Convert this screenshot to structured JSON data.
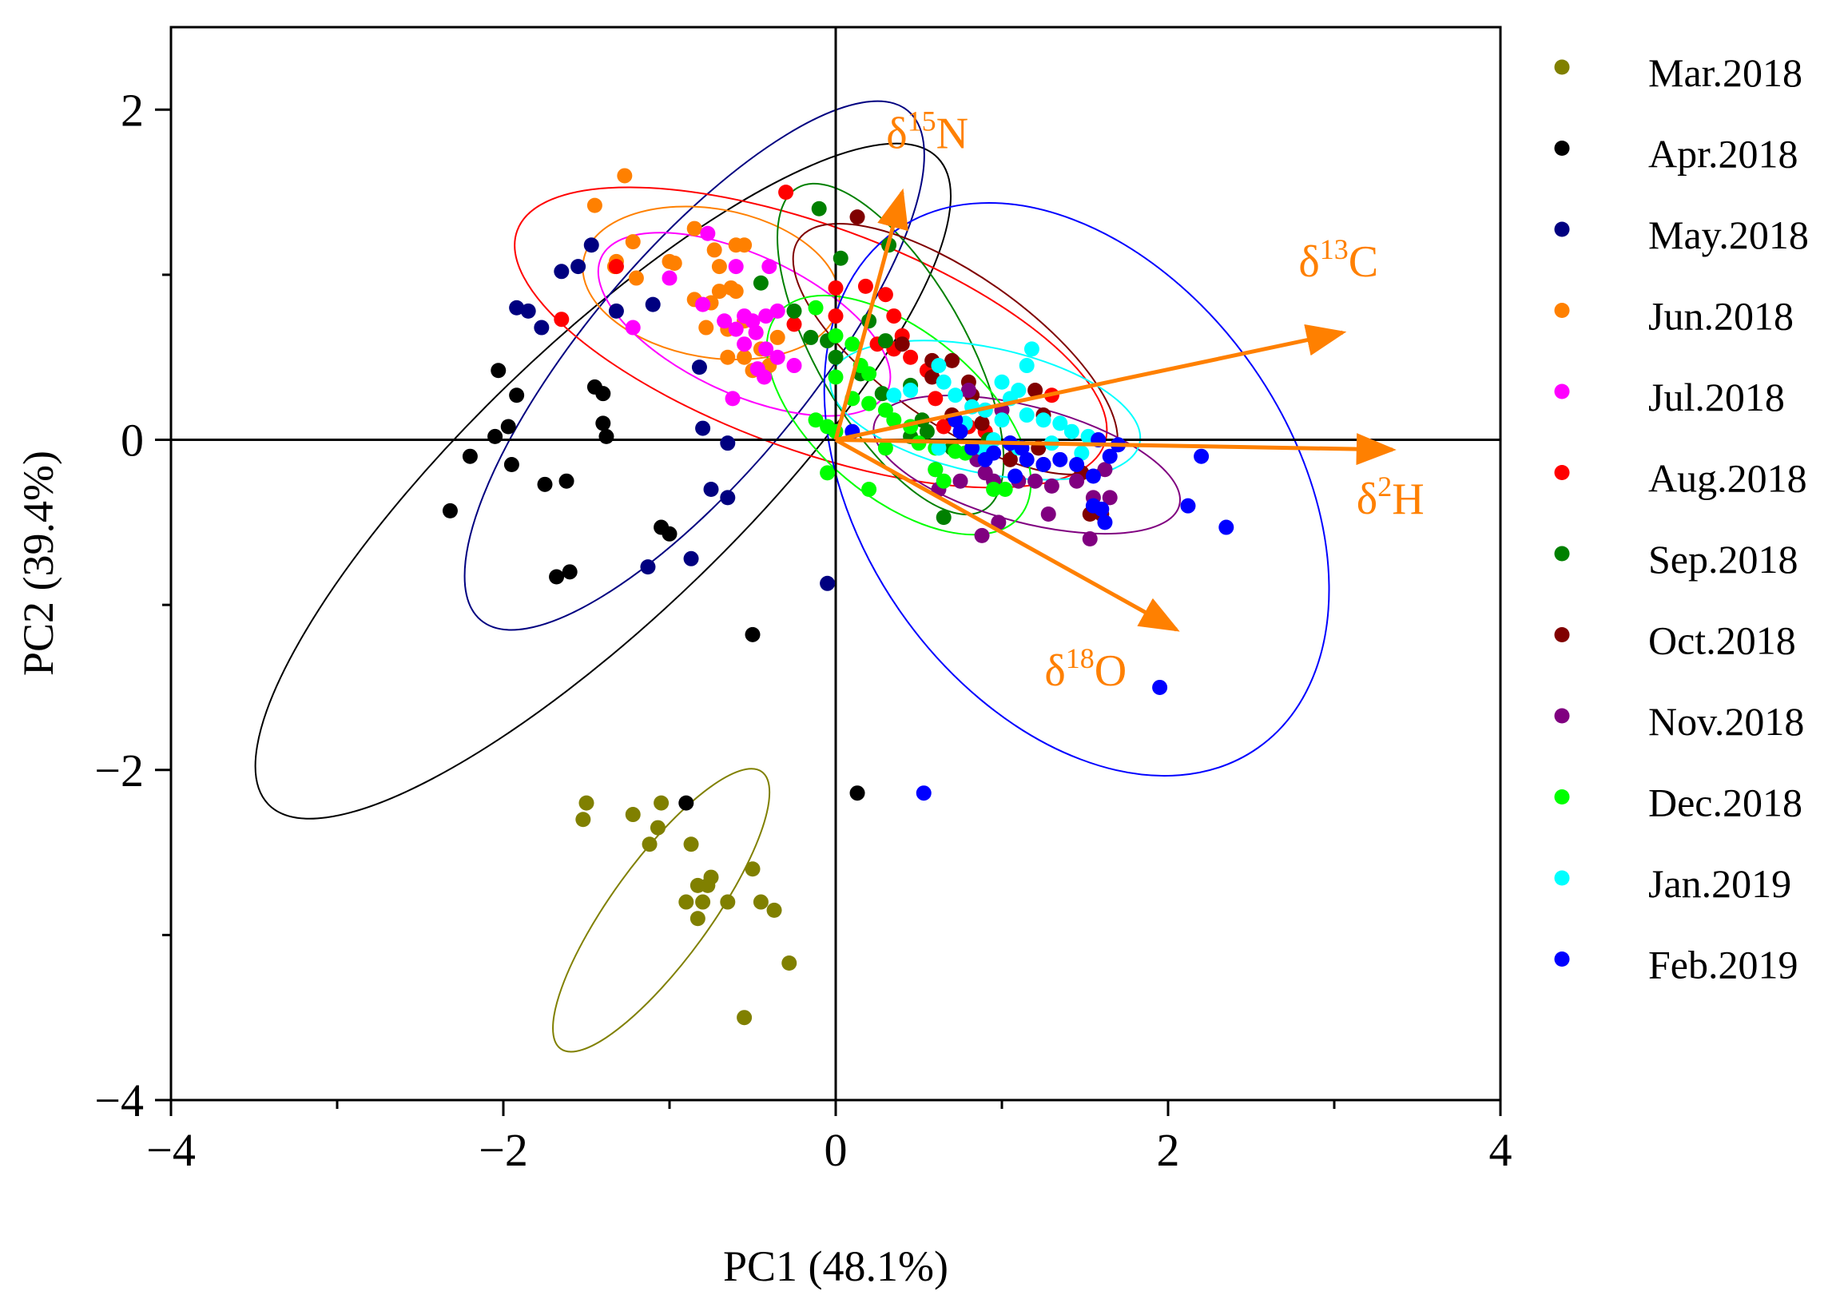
{
  "chart_data": {
    "type": "scatter",
    "title": "",
    "xlabel": "PC1 (48.1%)",
    "ylabel": "PC2 (39.4%)",
    "xlim": [
      -4,
      4
    ],
    "ylim": [
      -4,
      2.5
    ],
    "xticks": [
      -4,
      -2,
      0,
      2,
      4
    ],
    "yticks": [
      -4,
      -2,
      0,
      2
    ],
    "x_tick_labels": [
      "−4",
      "−2",
      "0",
      "2",
      "4"
    ],
    "y_tick_labels": [
      "−4",
      "−2",
      "0",
      "2"
    ],
    "grid": false,
    "legend_position": "right",
    "reference_lines": {
      "x": 0,
      "y": 0
    },
    "series": [
      {
        "name": "Mar.2018",
        "color": "#808000",
        "points": [
          [
            -1.5,
            -2.2
          ],
          [
            -1.52,
            -2.3
          ],
          [
            -1.22,
            -2.27
          ],
          [
            -1.05,
            -2.2
          ],
          [
            -1.07,
            -2.35
          ],
          [
            -1.12,
            -2.45
          ],
          [
            -0.87,
            -2.45
          ],
          [
            -0.83,
            -2.7
          ],
          [
            -0.9,
            -2.8
          ],
          [
            -0.77,
            -2.7
          ],
          [
            -0.75,
            -2.65
          ],
          [
            -0.8,
            -2.8
          ],
          [
            -0.83,
            -2.9
          ],
          [
            -0.65,
            -2.8
          ],
          [
            -0.5,
            -2.6
          ],
          [
            -0.45,
            -2.8
          ],
          [
            -0.37,
            -2.85
          ],
          [
            -0.28,
            -3.17
          ],
          [
            -0.55,
            -3.5
          ]
        ],
        "ellipse": {
          "cx": -1.05,
          "cy": -2.85,
          "rx": 1.03,
          "ry": 0.3,
          "angle": 54
        }
      },
      {
        "name": "Apr.2018",
        "color": "#000000",
        "points": [
          [
            -2.32,
            -0.43
          ],
          [
            -2.2,
            -0.1
          ],
          [
            -2.05,
            0.02
          ],
          [
            -2.03,
            0.42
          ],
          [
            -1.97,
            0.08
          ],
          [
            -1.95,
            -0.15
          ],
          [
            -1.92,
            0.27
          ],
          [
            -1.75,
            -0.27
          ],
          [
            -1.62,
            -0.25
          ],
          [
            -1.68,
            -0.83
          ],
          [
            -1.6,
            -0.8
          ],
          [
            -1.45,
            0.32
          ],
          [
            -1.4,
            0.28
          ],
          [
            -1.4,
            0.1
          ],
          [
            -1.38,
            0.02
          ],
          [
            -1.05,
            -0.53
          ],
          [
            -1.0,
            -0.57
          ],
          [
            -0.9,
            -2.2
          ],
          [
            -0.5,
            -1.18
          ],
          [
            0.13,
            -2.14
          ]
        ],
        "ellipse": {
          "cx": -1.4,
          "cy": -0.25,
          "rx": 2.8,
          "ry": 0.82,
          "angle": 44
        }
      },
      {
        "name": "May.2018",
        "color": "#000080",
        "points": [
          [
            -1.92,
            0.8
          ],
          [
            -1.85,
            0.78
          ],
          [
            -1.77,
            0.68
          ],
          [
            -1.65,
            1.02
          ],
          [
            -1.55,
            1.05
          ],
          [
            -1.47,
            1.18
          ],
          [
            -1.32,
            0.78
          ],
          [
            -1.1,
            0.82
          ],
          [
            -0.82,
            0.44
          ],
          [
            -0.8,
            0.07
          ],
          [
            -0.65,
            -0.02
          ],
          [
            -0.75,
            -0.3
          ],
          [
            -0.65,
            -0.35
          ],
          [
            -0.87,
            -0.72
          ],
          [
            -1.13,
            -0.77
          ],
          [
            -0.05,
            -0.87
          ]
        ],
        "ellipse": {
          "cx": -0.85,
          "cy": 0.45,
          "rx": 2.0,
          "ry": 0.67,
          "angle": 50
        }
      },
      {
        "name": "Jun.2018",
        "color": "#ff8000",
        "points": [
          [
            -1.27,
            1.6
          ],
          [
            -1.45,
            1.42
          ],
          [
            -1.22,
            1.2
          ],
          [
            -1.32,
            1.08
          ],
          [
            -1.33,
            1.05
          ],
          [
            -1.2,
            0.98
          ],
          [
            -0.97,
            1.07
          ],
          [
            -1.0,
            1.08
          ],
          [
            -0.85,
            1.28
          ],
          [
            -0.73,
            1.15
          ],
          [
            -0.6,
            1.18
          ],
          [
            -0.55,
            1.18
          ],
          [
            -0.7,
            1.05
          ],
          [
            -0.85,
            0.85
          ],
          [
            -0.75,
            0.83
          ],
          [
            -0.7,
            0.9
          ],
          [
            -0.63,
            0.92
          ],
          [
            -0.6,
            0.9
          ],
          [
            -0.78,
            0.68
          ],
          [
            -0.65,
            0.67
          ],
          [
            -0.55,
            0.72
          ],
          [
            -0.48,
            0.65
          ],
          [
            -0.35,
            0.62
          ],
          [
            -0.45,
            0.55
          ],
          [
            -0.55,
            0.5
          ],
          [
            -0.65,
            0.5
          ],
          [
            -0.5,
            0.42
          ],
          [
            -0.4,
            0.45
          ]
        ],
        "ellipse": {
          "cx": -0.75,
          "cy": 0.95,
          "rx": 0.78,
          "ry": 0.45,
          "angle": -10
        }
      },
      {
        "name": "Jul.2018",
        "color": "#ff00ff",
        "points": [
          [
            -0.77,
            1.25
          ],
          [
            -0.6,
            1.05
          ],
          [
            -0.4,
            1.05
          ],
          [
            -1.0,
            0.98
          ],
          [
            -0.8,
            0.82
          ],
          [
            -0.67,
            0.72
          ],
          [
            -0.55,
            0.75
          ],
          [
            -0.5,
            0.72
          ],
          [
            -0.42,
            0.75
          ],
          [
            -0.35,
            0.78
          ],
          [
            -0.6,
            0.67
          ],
          [
            -0.48,
            0.65
          ],
          [
            -0.42,
            0.55
          ],
          [
            -0.35,
            0.5
          ],
          [
            -0.25,
            0.45
          ],
          [
            -0.55,
            0.58
          ],
          [
            -0.47,
            0.43
          ],
          [
            -0.43,
            0.38
          ],
          [
            -0.62,
            0.25
          ],
          [
            -1.22,
            0.68
          ]
        ],
        "ellipse": {
          "cx": -0.55,
          "cy": 0.7,
          "rx": 0.95,
          "ry": 0.42,
          "angle": -25
        }
      },
      {
        "name": "Aug.2018",
        "color": "#ff0000",
        "points": [
          [
            -1.65,
            0.73
          ],
          [
            -1.32,
            1.05
          ],
          [
            -0.3,
            1.5
          ],
          [
            0.0,
            0.92
          ],
          [
            -0.25,
            0.7
          ],
          [
            0.0,
            0.75
          ],
          [
            0.18,
            0.93
          ],
          [
            0.3,
            0.88
          ],
          [
            0.35,
            0.75
          ],
          [
            0.4,
            0.63
          ],
          [
            0.35,
            0.55
          ],
          [
            0.25,
            0.58
          ],
          [
            0.45,
            0.5
          ],
          [
            0.55,
            0.42
          ],
          [
            0.6,
            0.25
          ],
          [
            0.65,
            0.08
          ],
          [
            0.8,
            0.08
          ],
          [
            0.9,
            0.05
          ],
          [
            1.3,
            0.27
          ]
        ],
        "ellipse": {
          "cx": -0.15,
          "cy": 0.62,
          "rx": 1.88,
          "ry": 0.68,
          "angle": -20
        }
      },
      {
        "name": "Sep.2018",
        "color": "#008000",
        "points": [
          [
            -0.1,
            1.4
          ],
          [
            0.03,
            1.1
          ],
          [
            0.32,
            1.18
          ],
          [
            -0.45,
            0.95
          ],
          [
            -0.25,
            0.78
          ],
          [
            -0.05,
            0.6
          ],
          [
            0.0,
            0.5
          ],
          [
            0.2,
            0.72
          ],
          [
            0.3,
            0.6
          ],
          [
            0.15,
            0.4
          ],
          [
            0.28,
            0.28
          ],
          [
            0.45,
            0.33
          ],
          [
            0.52,
            0.12
          ],
          [
            0.45,
            0.02
          ],
          [
            0.55,
            0.05
          ],
          [
            0.7,
            -0.05
          ],
          [
            0.85,
            -0.08
          ],
          [
            0.92,
            0.0
          ],
          [
            0.65,
            -0.47
          ],
          [
            -0.15,
            0.62
          ]
        ],
        "ellipse": {
          "cx": 0.33,
          "cy": 0.55,
          "rx": 1.12,
          "ry": 0.45,
          "angle": -60
        }
      },
      {
        "name": "Oct.2018",
        "color": "#800000",
        "points": [
          [
            0.13,
            1.35
          ],
          [
            0.4,
            0.58
          ],
          [
            0.58,
            0.48
          ],
          [
            0.7,
            0.48
          ],
          [
            0.58,
            0.38
          ],
          [
            0.8,
            0.35
          ],
          [
            0.82,
            0.27
          ],
          [
            0.7,
            0.15
          ],
          [
            0.88,
            0.1
          ],
          [
            1.2,
            0.3
          ],
          [
            1.25,
            0.15
          ],
          [
            1.22,
            -0.05
          ],
          [
            1.08,
            -0.05
          ],
          [
            1.05,
            -0.12
          ],
          [
            1.48,
            -0.2
          ],
          [
            1.53,
            -0.45
          ],
          [
            1.6,
            -0.45
          ]
        ],
        "ellipse": {
          "cx": 0.72,
          "cy": 0.55,
          "rx": 1.15,
          "ry": 0.45,
          "angle": -35
        }
      },
      {
        "name": "Nov.2018",
        "color": "#800080",
        "points": [
          [
            0.8,
            0.3
          ],
          [
            0.9,
            0.18
          ],
          [
            1.0,
            0.18
          ],
          [
            1.05,
            -0.02
          ],
          [
            0.85,
            -0.12
          ],
          [
            0.75,
            -0.25
          ],
          [
            0.9,
            -0.2
          ],
          [
            0.95,
            -0.25
          ],
          [
            1.1,
            -0.25
          ],
          [
            1.2,
            -0.25
          ],
          [
            1.25,
            -0.15
          ],
          [
            1.3,
            -0.28
          ],
          [
            1.45,
            -0.25
          ],
          [
            1.62,
            -0.18
          ],
          [
            1.65,
            -0.35
          ],
          [
            1.55,
            -0.35
          ],
          [
            1.28,
            -0.45
          ],
          [
            0.98,
            -0.5
          ],
          [
            0.88,
            -0.58
          ],
          [
            1.53,
            -0.6
          ],
          [
            0.6,
            -0.18
          ],
          [
            0.62,
            -0.3
          ]
        ],
        "ellipse": {
          "cx": 1.15,
          "cy": -0.15,
          "rx": 0.95,
          "ry": 0.35,
          "angle": -15
        }
      },
      {
        "name": "Dec.2018",
        "color": "#00ff00",
        "points": [
          [
            -0.12,
            0.8
          ],
          [
            0.0,
            0.63
          ],
          [
            0.1,
            0.58
          ],
          [
            0.15,
            0.45
          ],
          [
            0.2,
            0.4
          ],
          [
            0.0,
            0.38
          ],
          [
            0.1,
            0.25
          ],
          [
            0.2,
            0.22
          ],
          [
            0.3,
            0.18
          ],
          [
            0.35,
            0.12
          ],
          [
            0.45,
            0.08
          ],
          [
            -0.12,
            0.12
          ],
          [
            -0.05,
            0.08
          ],
          [
            0.0,
            0.05
          ],
          [
            0.3,
            -0.05
          ],
          [
            0.5,
            -0.02
          ],
          [
            0.6,
            -0.05
          ],
          [
            0.72,
            -0.07
          ],
          [
            0.78,
            -0.08
          ],
          [
            0.6,
            -0.18
          ],
          [
            0.65,
            -0.25
          ],
          [
            0.2,
            -0.3
          ],
          [
            -0.05,
            -0.2
          ],
          [
            0.95,
            -0.3
          ],
          [
            1.02,
            -0.3
          ]
        ],
        "ellipse": {
          "cx": 0.38,
          "cy": 0.15,
          "rx": 0.95,
          "ry": 0.5,
          "angle": -40
        }
      },
      {
        "name": "Jan.2019",
        "color": "#00ffff",
        "points": [
          [
            0.62,
            0.45
          ],
          [
            0.65,
            0.35
          ],
          [
            0.72,
            0.27
          ],
          [
            0.82,
            0.2
          ],
          [
            0.9,
            0.18
          ],
          [
            1.0,
            0.12
          ],
          [
            1.05,
            0.25
          ],
          [
            1.1,
            0.3
          ],
          [
            1.15,
            0.45
          ],
          [
            1.18,
            0.55
          ],
          [
            1.0,
            0.35
          ],
          [
            1.15,
            0.15
          ],
          [
            1.25,
            0.12
          ],
          [
            1.35,
            0.1
          ],
          [
            1.42,
            0.05
          ],
          [
            1.52,
            0.02
          ],
          [
            0.62,
            -0.05
          ],
          [
            0.88,
            -0.05
          ],
          [
            1.1,
            -0.05
          ],
          [
            1.3,
            -0.02
          ],
          [
            1.48,
            -0.08
          ],
          [
            0.78,
            0.1
          ],
          [
            0.95,
            0.0
          ],
          [
            0.35,
            0.27
          ],
          [
            0.45,
            0.3
          ]
        ],
        "ellipse": {
          "cx": 0.9,
          "cy": 0.18,
          "rx": 0.95,
          "ry": 0.38,
          "angle": -12
        }
      },
      {
        "name": "Feb.2019",
        "color": "#0000ff",
        "points": [
          [
            0.1,
            0.05
          ],
          [
            0.72,
            0.12
          ],
          [
            0.75,
            0.05
          ],
          [
            0.82,
            -0.05
          ],
          [
            0.95,
            -0.08
          ],
          [
            1.05,
            -0.02
          ],
          [
            1.12,
            -0.05
          ],
          [
            1.15,
            -0.12
          ],
          [
            1.25,
            -0.15
          ],
          [
            1.35,
            -0.12
          ],
          [
            1.45,
            -0.15
          ],
          [
            1.55,
            -0.22
          ],
          [
            1.58,
            0.0
          ],
          [
            1.65,
            -0.1
          ],
          [
            1.7,
            -0.03
          ],
          [
            1.55,
            -0.4
          ],
          [
            1.6,
            -0.42
          ],
          [
            1.62,
            -0.5
          ],
          [
            2.2,
            -0.1
          ],
          [
            2.12,
            -0.4
          ],
          [
            2.35,
            -0.53
          ],
          [
            1.95,
            -1.5
          ],
          [
            0.53,
            -2.14
          ],
          [
            0.9,
            -0.12
          ],
          [
            1.08,
            -0.22
          ]
        ],
        "ellipse": {
          "cx": 1.45,
          "cy": -0.3,
          "rx": 1.9,
          "ry": 1.3,
          "angle": -55
        }
      }
    ],
    "loadings": [
      {
        "label": "δ15N",
        "x": 0.4,
        "y": 1.5
      },
      {
        "label": "δ13C",
        "x": 3.05,
        "y": 0.65
      },
      {
        "label": "δ2H",
        "x": 3.35,
        "y": -0.06
      },
      {
        "label": "δ18O",
        "x": 2.05,
        "y": -1.15
      }
    ],
    "loading_color": "#ff8000"
  }
}
